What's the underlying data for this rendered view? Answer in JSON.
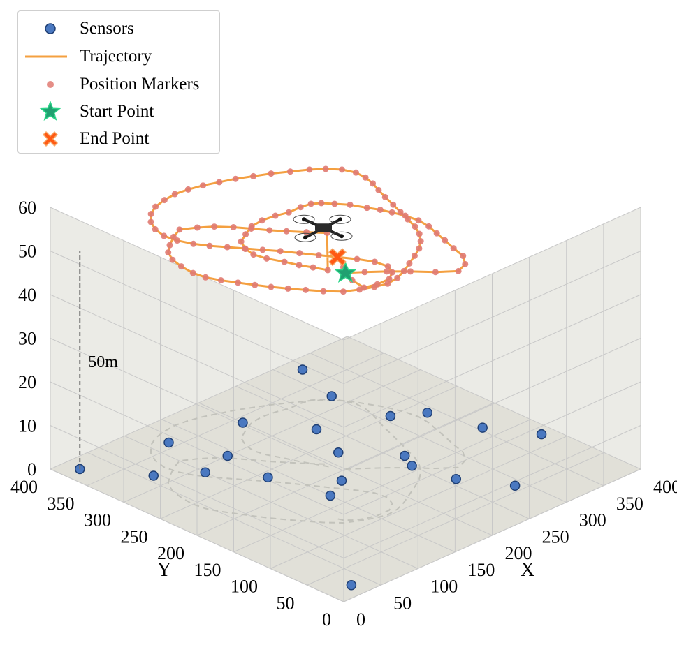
{
  "chart_data": {
    "type": "scatter",
    "subtype": "3d-line-scatter",
    "title": "",
    "xlabel": "X",
    "ylabel": "Y",
    "zlabel": "",
    "xlim": [
      0,
      400
    ],
    "ylim": [
      0,
      400
    ],
    "zlim": [
      0,
      60
    ],
    "x_ticks": [
      "0",
      "50",
      "100",
      "150",
      "200",
      "250",
      "300",
      "350",
      "400"
    ],
    "y_ticks": [
      "0",
      "50",
      "100",
      "150",
      "200",
      "250",
      "300",
      "350",
      "400"
    ],
    "z_ticks": [
      "0",
      "10",
      "20",
      "30",
      "40",
      "50",
      "60"
    ],
    "grid": true,
    "legend_position": "top-left",
    "colors": {
      "sensor_fill": "#4a78c0",
      "sensor_edge": "#1f3f74",
      "trajectory": "#f4a040",
      "markers": "#e07a72",
      "start": "#20a070",
      "end": "#ff5a14",
      "pane": "#ebebe6",
      "floor": "#e1e0d8",
      "grid": "#c8c8c8"
    },
    "legend": [
      {
        "label": "Sensors",
        "icon": "sensor-dot"
      },
      {
        "label": "Trajectory",
        "icon": "line"
      },
      {
        "label": "Position Markers",
        "icon": "small-dot"
      },
      {
        "label": "Start Point",
        "icon": "star"
      },
      {
        "label": "End Point",
        "icon": "x-mark"
      }
    ],
    "annotation": {
      "text": "50m",
      "from": [
        20,
        380,
        0
      ],
      "to": [
        20,
        380,
        50
      ]
    },
    "drone_icon": "quadcopter-icon",
    "series": [
      {
        "name": "Sensors",
        "type": "scatter",
        "points": [
          [
            20,
            380,
            0
          ],
          [
            60,
            320,
            0
          ],
          [
            100,
            290,
            0
          ],
          [
            135,
            240,
            0
          ],
          [
            180,
            185,
            0
          ],
          [
            30,
            20,
            0
          ],
          [
            150,
            170,
            0
          ],
          [
            140,
            300,
            0
          ],
          [
            120,
            360,
            0
          ],
          [
            200,
            340,
            0
          ],
          [
            220,
            230,
            0
          ],
          [
            240,
            280,
            0
          ],
          [
            250,
            160,
            0
          ],
          [
            260,
            180,
            0
          ],
          [
            300,
            320,
            0
          ],
          [
            320,
            380,
            0
          ],
          [
            310,
            250,
            0
          ],
          [
            260,
            110,
            0
          ],
          [
            340,
            230,
            0
          ],
          [
            355,
            170,
            0
          ],
          [
            385,
            120,
            0
          ],
          [
            290,
            60,
            0
          ]
        ]
      },
      {
        "name": "Trajectory",
        "type": "line",
        "start": [
          200,
          200,
          45
        ],
        "end": [
          120,
          130,
          60
        ],
        "points": [
          [
            200,
            200,
            45
          ],
          [
            214,
            188,
            45
          ],
          [
            230,
            174,
            45
          ],
          [
            246,
            158,
            45
          ],
          [
            262,
            140,
            45
          ],
          [
            279,
            126,
            45
          ],
          [
            294,
            132,
            45
          ],
          [
            305,
            146,
            45
          ],
          [
            310,
            164,
            45
          ],
          [
            316,
            182,
            45
          ],
          [
            321,
            198,
            45
          ],
          [
            326,
            214,
            45
          ],
          [
            328,
            230,
            45
          ],
          [
            326,
            246,
            45
          ],
          [
            322,
            260,
            45
          ],
          [
            318,
            272,
            45
          ],
          [
            312,
            284,
            45
          ],
          [
            305,
            300,
            45
          ],
          [
            296,
            312,
            45
          ],
          [
            288,
            322,
            45
          ],
          [
            280,
            328,
            45
          ],
          [
            268,
            330,
            45
          ],
          [
            252,
            330,
            45
          ],
          [
            238,
            334,
            45
          ],
          [
            222,
            336,
            45
          ],
          [
            206,
            334,
            45
          ],
          [
            190,
            326,
            45
          ],
          [
            176,
            318,
            45
          ],
          [
            168,
            304,
            45
          ],
          [
            165,
            290,
            45
          ],
          [
            168,
            275,
            45
          ],
          [
            175,
            258,
            45
          ],
          [
            180,
            243,
            45
          ],
          [
            186,
            230,
            45
          ],
          [
            192,
            216,
            45
          ],
          [
            195,
            220,
            53
          ],
          [
            182,
            235,
            53
          ],
          [
            170,
            250,
            53
          ],
          [
            160,
            263,
            53
          ],
          [
            150,
            278,
            53
          ],
          [
            140,
            292,
            53
          ],
          [
            128,
            306,
            53
          ],
          [
            115,
            316,
            53
          ],
          [
            100,
            325,
            53
          ],
          [
            85,
            318,
            53
          ],
          [
            70,
            308,
            53
          ],
          [
            58,
            298,
            53
          ],
          [
            50,
            284,
            53
          ],
          [
            46,
            268,
            53
          ],
          [
            44,
            250,
            53
          ],
          [
            46,
            235,
            53
          ],
          [
            52,
            220,
            53
          ],
          [
            60,
            205,
            53
          ],
          [
            68,
            190,
            53
          ],
          [
            76,
            176,
            53
          ],
          [
            85,
            162,
            53
          ],
          [
            95,
            148,
            53
          ],
          [
            105,
            134,
            53
          ],
          [
            118,
            120,
            53
          ],
          [
            132,
            112,
            53
          ],
          [
            146,
            106,
            53
          ],
          [
            160,
            102,
            53
          ],
          [
            175,
            104,
            53
          ],
          [
            190,
            110,
            53
          ],
          [
            205,
            118,
            53
          ],
          [
            220,
            126,
            53
          ],
          [
            234,
            134,
            53
          ],
          [
            246,
            144,
            53
          ],
          [
            256,
            156,
            53
          ],
          [
            264,
            170,
            53
          ],
          [
            270,
            186,
            53
          ],
          [
            276,
            202,
            53
          ],
          [
            282,
            218,
            53
          ],
          [
            288,
            235,
            53
          ],
          [
            294,
            250,
            53
          ],
          [
            300,
            264,
            53
          ],
          [
            304,
            278,
            53
          ],
          [
            305,
            292,
            53
          ],
          [
            300,
            306,
            53
          ],
          [
            290,
            318,
            53
          ],
          [
            278,
            328,
            53
          ],
          [
            262,
            338,
            53
          ],
          [
            246,
            348,
            53
          ],
          [
            230,
            356,
            53
          ],
          [
            214,
            364,
            53
          ],
          [
            198,
            370,
            53
          ],
          [
            182,
            376,
            53
          ],
          [
            166,
            380,
            53
          ],
          [
            150,
            382,
            53
          ],
          [
            134,
            380,
            53
          ],
          [
            118,
            376,
            53
          ],
          [
            104,
            368,
            53
          ],
          [
            92,
            356,
            53
          ],
          [
            84,
            342,
            53
          ],
          [
            80,
            326,
            53
          ],
          [
            82,
            310,
            53
          ],
          [
            88,
            294,
            53
          ],
          [
            96,
            280,
            53
          ],
          [
            106,
            266,
            53
          ],
          [
            116,
            252,
            53
          ],
          [
            126,
            238,
            53
          ],
          [
            136,
            224,
            53
          ],
          [
            146,
            208,
            53
          ],
          [
            156,
            192,
            53
          ],
          [
            166,
            176,
            53
          ],
          [
            176,
            160,
            53
          ],
          [
            184,
            144,
            53
          ],
          [
            186,
            128,
            53
          ],
          [
            180,
            116,
            53
          ],
          [
            168,
            108,
            53
          ],
          [
            152,
            108,
            53
          ],
          [
            138,
            112,
            53
          ],
          [
            128,
            118,
            55
          ],
          [
            122,
            124,
            58
          ],
          [
            120,
            130,
            60
          ]
        ]
      }
    ],
    "floor_path": [
      [
        200,
        200
      ],
      [
        214,
        188
      ],
      [
        230,
        174
      ],
      [
        246,
        158
      ],
      [
        262,
        140
      ],
      [
        279,
        126
      ],
      [
        294,
        132
      ],
      [
        305,
        146
      ],
      [
        310,
        164
      ],
      [
        316,
        182
      ],
      [
        321,
        198
      ],
      [
        326,
        214
      ],
      [
        328,
        230
      ],
      [
        326,
        246
      ],
      [
        322,
        260
      ],
      [
        318,
        272
      ],
      [
        312,
        284
      ],
      [
        305,
        300
      ],
      [
        296,
        312
      ],
      [
        288,
        322
      ],
      [
        280,
        328
      ],
      [
        268,
        330
      ],
      [
        252,
        330
      ],
      [
        238,
        334
      ],
      [
        222,
        336
      ],
      [
        206,
        334
      ],
      [
        190,
        326
      ],
      [
        176,
        318
      ],
      [
        168,
        304
      ],
      [
        165,
        290
      ],
      [
        168,
        275
      ],
      [
        175,
        258
      ],
      [
        180,
        243
      ],
      [
        186,
        230
      ],
      [
        192,
        216
      ],
      [
        195,
        220
      ],
      [
        182,
        235
      ],
      [
        170,
        250
      ],
      [
        160,
        263
      ],
      [
        150,
        278
      ],
      [
        140,
        292
      ],
      [
        128,
        306
      ],
      [
        115,
        316
      ],
      [
        100,
        325
      ],
      [
        85,
        318
      ],
      [
        70,
        308
      ],
      [
        58,
        298
      ],
      [
        50,
        284
      ],
      [
        46,
        268
      ],
      [
        44,
        250
      ],
      [
        46,
        235
      ],
      [
        52,
        220
      ],
      [
        60,
        205
      ],
      [
        68,
        190
      ],
      [
        76,
        176
      ],
      [
        85,
        162
      ],
      [
        95,
        148
      ],
      [
        105,
        134
      ],
      [
        118,
        120
      ],
      [
        132,
        112
      ],
      [
        146,
        106
      ],
      [
        160,
        102
      ],
      [
        175,
        104
      ],
      [
        190,
        110
      ],
      [
        205,
        118
      ],
      [
        220,
        126
      ],
      [
        234,
        134
      ],
      [
        246,
        144
      ],
      [
        256,
        156
      ],
      [
        264,
        170
      ],
      [
        270,
        186
      ],
      [
        276,
        202
      ],
      [
        282,
        218
      ],
      [
        288,
        235
      ],
      [
        294,
        250
      ],
      [
        300,
        264
      ],
      [
        304,
        278
      ],
      [
        305,
        292
      ],
      [
        300,
        306
      ],
      [
        290,
        318
      ],
      [
        278,
        328
      ],
      [
        262,
        338
      ],
      [
        246,
        348
      ],
      [
        230,
        356
      ],
      [
        214,
        364
      ],
      [
        198,
        370
      ],
      [
        182,
        376
      ],
      [
        166,
        380
      ],
      [
        150,
        382
      ],
      [
        134,
        380
      ],
      [
        118,
        376
      ],
      [
        104,
        368
      ],
      [
        92,
        356
      ],
      [
        84,
        342
      ],
      [
        80,
        326
      ],
      [
        82,
        310
      ],
      [
        88,
        294
      ],
      [
        96,
        280
      ],
      [
        106,
        266
      ],
      [
        116,
        252
      ],
      [
        126,
        238
      ],
      [
        136,
        224
      ],
      [
        146,
        208
      ],
      [
        156,
        192
      ],
      [
        166,
        176
      ],
      [
        176,
        160
      ],
      [
        184,
        144
      ],
      [
        186,
        128
      ],
      [
        180,
        116
      ],
      [
        168,
        108
      ],
      [
        152,
        108
      ],
      [
        138,
        112
      ],
      [
        128,
        118
      ],
      [
        122,
        124
      ],
      [
        120,
        130
      ]
    ]
  }
}
